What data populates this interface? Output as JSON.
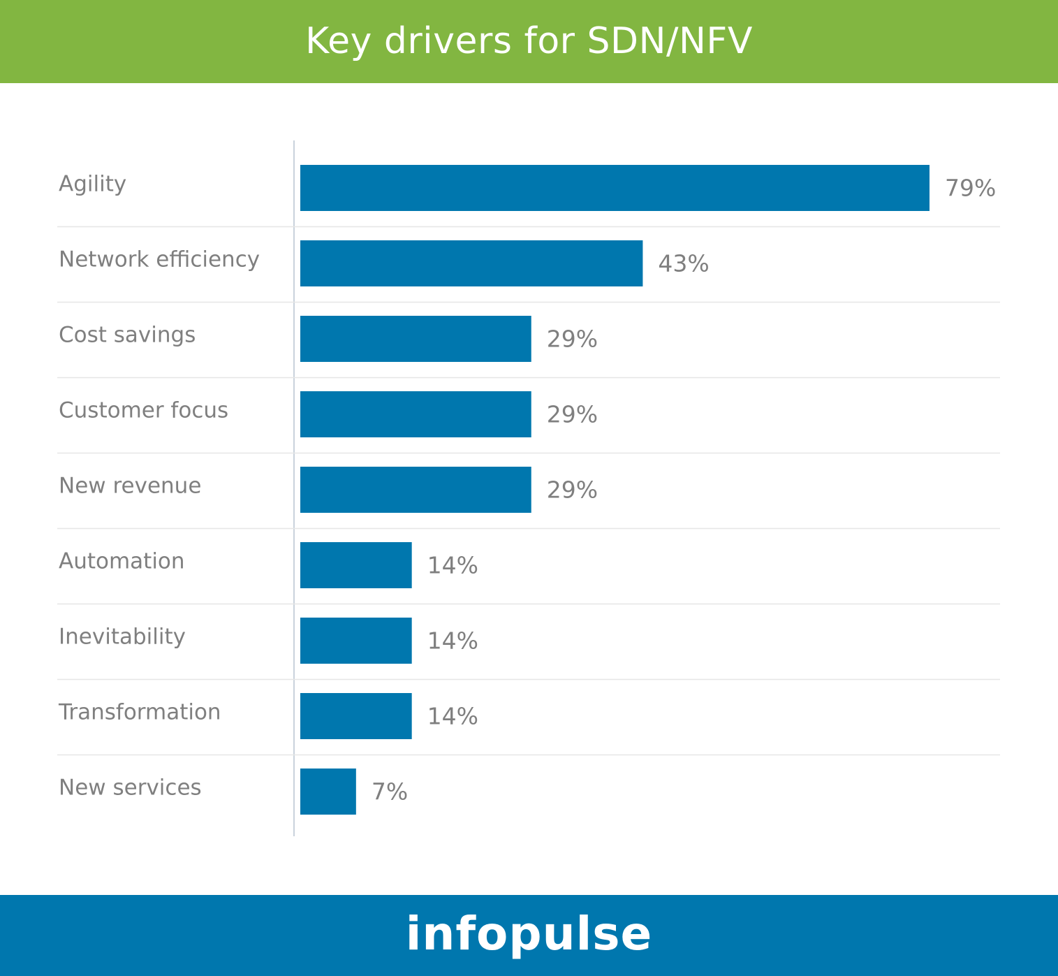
{
  "colors": {
    "header_bg": "#82b641",
    "footer_bg": "#0077ae",
    "bar": "#0077ae",
    "label_text": "#7f7f7f",
    "value_text": "#7f7f7f",
    "separator": "#e6e6e6",
    "axis": "#c9d2dc"
  },
  "header": {
    "title": "Key drivers for SDN/NFV"
  },
  "footer": {
    "brand": "infopulse"
  },
  "chart_data": {
    "type": "bar",
    "orientation": "horizontal",
    "title": "Key drivers for SDN/NFV",
    "xlabel": "",
    "ylabel": "",
    "xlim": [
      0,
      100
    ],
    "grid": false,
    "legend": "none",
    "value_suffix": "%",
    "categories": [
      "Agility",
      "Network efficiency",
      "Cost savings",
      "Customer focus",
      "New revenue",
      "Automation",
      "Inevitability",
      "Transformation",
      "New services"
    ],
    "values": [
      79,
      43,
      29,
      29,
      29,
      14,
      14,
      14,
      7
    ],
    "value_labels": [
      "79%",
      "43%",
      "29%",
      "29%",
      "29%",
      "14%",
      "14%",
      "14%",
      "7%"
    ]
  }
}
